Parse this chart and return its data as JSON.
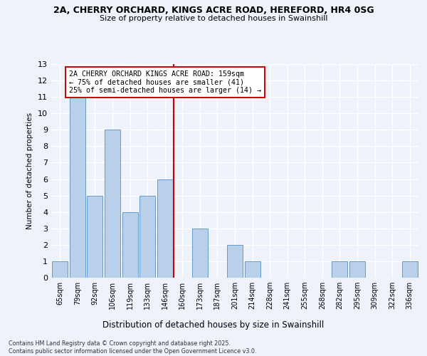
{
  "title_line1": "2A, CHERRY ORCHARD, KINGS ACRE ROAD, HEREFORD, HR4 0SG",
  "title_line2": "Size of property relative to detached houses in Swainshill",
  "xlabel": "Distribution of detached houses by size in Swainshill",
  "ylabel": "Number of detached properties",
  "annotation_line1": "2A CHERRY ORCHARD KINGS ACRE ROAD: 159sqm",
  "annotation_line2": "← 75% of detached houses are smaller (41)",
  "annotation_line3": "25% of semi-detached houses are larger (14) →",
  "categories": [
    "65sqm",
    "79sqm",
    "92sqm",
    "106sqm",
    "119sqm",
    "133sqm",
    "146sqm",
    "160sqm",
    "173sqm",
    "187sqm",
    "201sqm",
    "214sqm",
    "228sqm",
    "241sqm",
    "255sqm",
    "268sqm",
    "282sqm",
    "295sqm",
    "309sqm",
    "322sqm",
    "336sqm"
  ],
  "values": [
    1,
    11,
    5,
    9,
    4,
    5,
    6,
    0,
    3,
    0,
    2,
    1,
    0,
    0,
    0,
    0,
    1,
    1,
    0,
    0,
    1
  ],
  "bar_color": "#b8d0ea",
  "bar_edge_color": "#6699cc",
  "reference_line_color": "#cc0000",
  "background_color": "#eef2fa",
  "grid_color": "#ffffff",
  "ylim": [
    0,
    13
  ],
  "yticks": [
    0,
    1,
    2,
    3,
    4,
    5,
    6,
    7,
    8,
    9,
    10,
    11,
    12,
    13
  ],
  "footer_line1": "Contains HM Land Registry data © Crown copyright and database right 2025.",
  "footer_line2": "Contains public sector information licensed under the Open Government Licence v3.0."
}
